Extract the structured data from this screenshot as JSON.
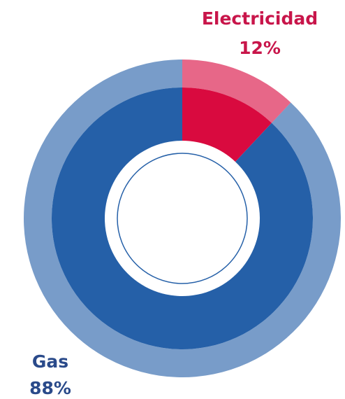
{
  "chart_data": {
    "type": "donut",
    "categories": [
      "Electricidad",
      "Gas"
    ],
    "values": [
      12,
      88
    ],
    "value_labels": [
      "12%",
      "88%"
    ],
    "colors": [
      "#d90a3f",
      "#2560a8"
    ],
    "label_colors": [
      "#c8154a",
      "#2a4a8a"
    ]
  }
}
